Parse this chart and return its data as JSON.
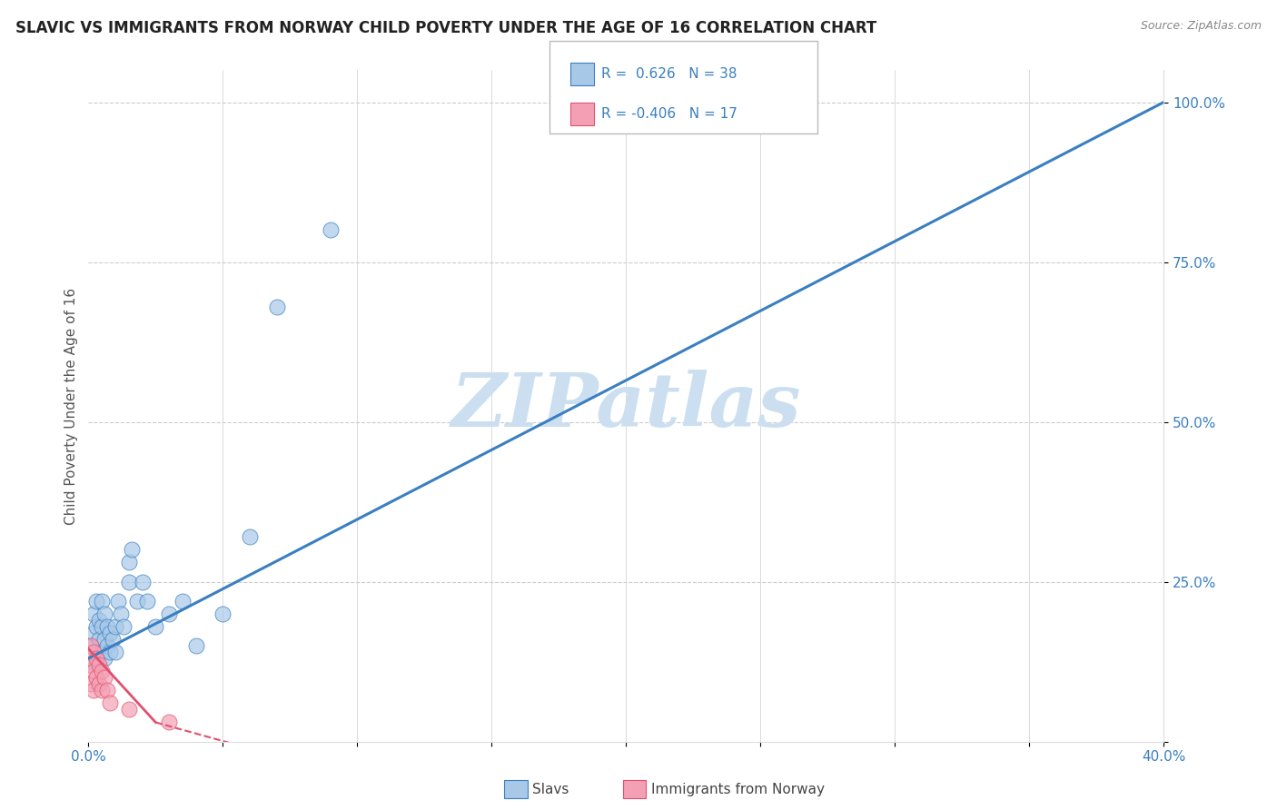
{
  "title": "SLAVIC VS IMMIGRANTS FROM NORWAY CHILD POVERTY UNDER THE AGE OF 16 CORRELATION CHART",
  "source": "Source: ZipAtlas.com",
  "ylabel": "Child Poverty Under the Age of 16",
  "x_min": 0.0,
  "x_max": 0.4,
  "y_min": 0.0,
  "y_max": 1.05,
  "x_ticks": [
    0.0,
    0.05,
    0.1,
    0.15,
    0.2,
    0.25,
    0.3,
    0.35,
    0.4
  ],
  "x_tick_labels": [
    "0.0%",
    "",
    "",
    "",
    "",
    "",
    "",
    "",
    "40.0%"
  ],
  "y_ticks_right": [
    0.25,
    0.5,
    0.75,
    1.0
  ],
  "y_tick_labels_right": [
    "25.0%",
    "50.0%",
    "75.0%",
    "100.0%"
  ],
  "grid_color": "#cccccc",
  "background_color": "#ffffff",
  "slavs_color": "#a8c8e8",
  "norway_color": "#f4a0b4",
  "slavs_line_color": "#3a7fc1",
  "norway_line_color": "#e05070",
  "R_slavs": 0.626,
  "N_slavs": 38,
  "R_norway": -0.406,
  "N_norway": 17,
  "slavs_x": [
    0.001,
    0.002,
    0.002,
    0.003,
    0.003,
    0.003,
    0.004,
    0.004,
    0.005,
    0.005,
    0.005,
    0.006,
    0.006,
    0.006,
    0.007,
    0.007,
    0.008,
    0.008,
    0.009,
    0.01,
    0.01,
    0.011,
    0.012,
    0.013,
    0.015,
    0.015,
    0.016,
    0.018,
    0.02,
    0.022,
    0.025,
    0.03,
    0.035,
    0.04,
    0.05,
    0.06,
    0.07,
    0.09
  ],
  "slavs_y": [
    0.15,
    0.17,
    0.2,
    0.12,
    0.18,
    0.22,
    0.16,
    0.19,
    0.14,
    0.18,
    0.22,
    0.13,
    0.16,
    0.2,
    0.15,
    0.18,
    0.14,
    0.17,
    0.16,
    0.14,
    0.18,
    0.22,
    0.2,
    0.18,
    0.28,
    0.25,
    0.3,
    0.22,
    0.25,
    0.22,
    0.18,
    0.2,
    0.22,
    0.15,
    0.2,
    0.32,
    0.68,
    0.8
  ],
  "norway_x": [
    0.001,
    0.001,
    0.001,
    0.002,
    0.002,
    0.002,
    0.003,
    0.003,
    0.004,
    0.004,
    0.005,
    0.005,
    0.006,
    0.007,
    0.008,
    0.015,
    0.03
  ],
  "norway_y": [
    0.15,
    0.12,
    0.09,
    0.14,
    0.11,
    0.08,
    0.13,
    0.1,
    0.12,
    0.09,
    0.11,
    0.08,
    0.1,
    0.08,
    0.06,
    0.05,
    0.03
  ],
  "watermark_text": "ZIPatlas",
  "watermark_color": "#ccdff0",
  "title_color": "#222222",
  "label_color": "#3a7fc1",
  "title_fontsize": 12,
  "axis_label_fontsize": 11,
  "tick_fontsize": 11
}
